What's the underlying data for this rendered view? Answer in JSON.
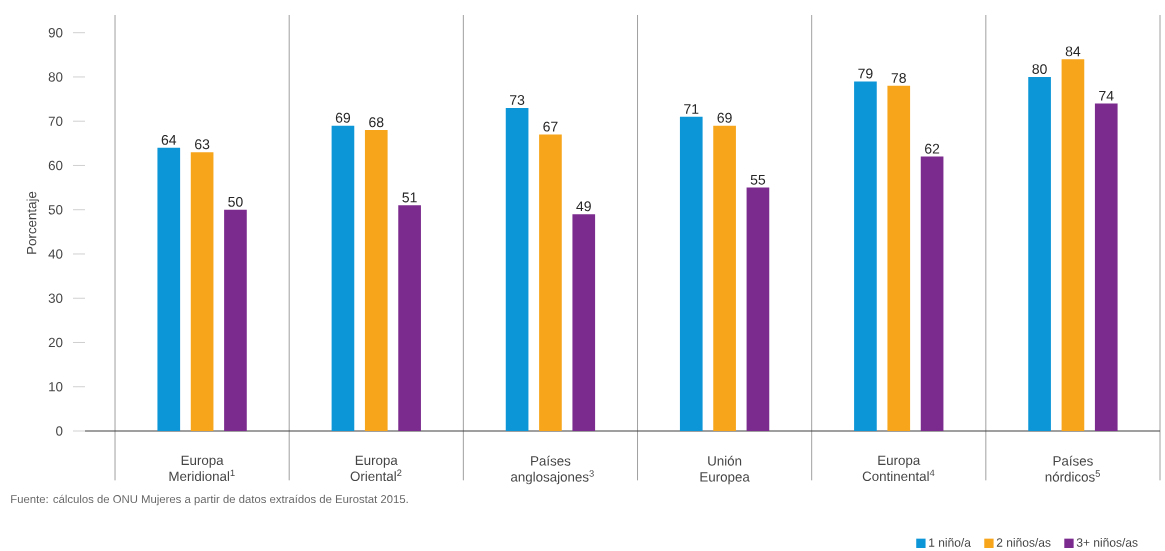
{
  "chart_data": {
    "type": "bar",
    "ylabel": "Porcentaje",
    "categories": [
      "Europa Meridional$^{1}$",
      "Europa Oriental$^{2}$",
      "Países anglosajones$^{3}$",
      "Unión Europea",
      "Europa Continental$^{4}$",
      "Países nórdicos$^{5}$"
    ],
    "series": [
      {
        "name": "1 niño/a",
        "color": "#0c96d8",
        "values": [
          64,
          69,
          73,
          71,
          79,
          80
        ]
      },
      {
        "name": "2 niños/as",
        "color": "#f7a61b",
        "values": [
          63,
          68,
          67,
          69,
          78,
          84
        ]
      },
      {
        "name": "3+ niños/as",
        "color": "#7b2a8d",
        "values": [
          50,
          51,
          49,
          55,
          62,
          74
        ]
      }
    ],
    "ylim": [
      0,
      94
    ],
    "yticks": [
      0,
      10,
      20,
      30,
      40,
      50,
      60,
      70,
      80,
      90
    ],
    "data_labels": true,
    "legend": "bottom right",
    "annotations": [
      "Fuente: cálculos de ONU Mujeres a partir de datos extraídos de Eurostat 2015."
    ]
  }
}
